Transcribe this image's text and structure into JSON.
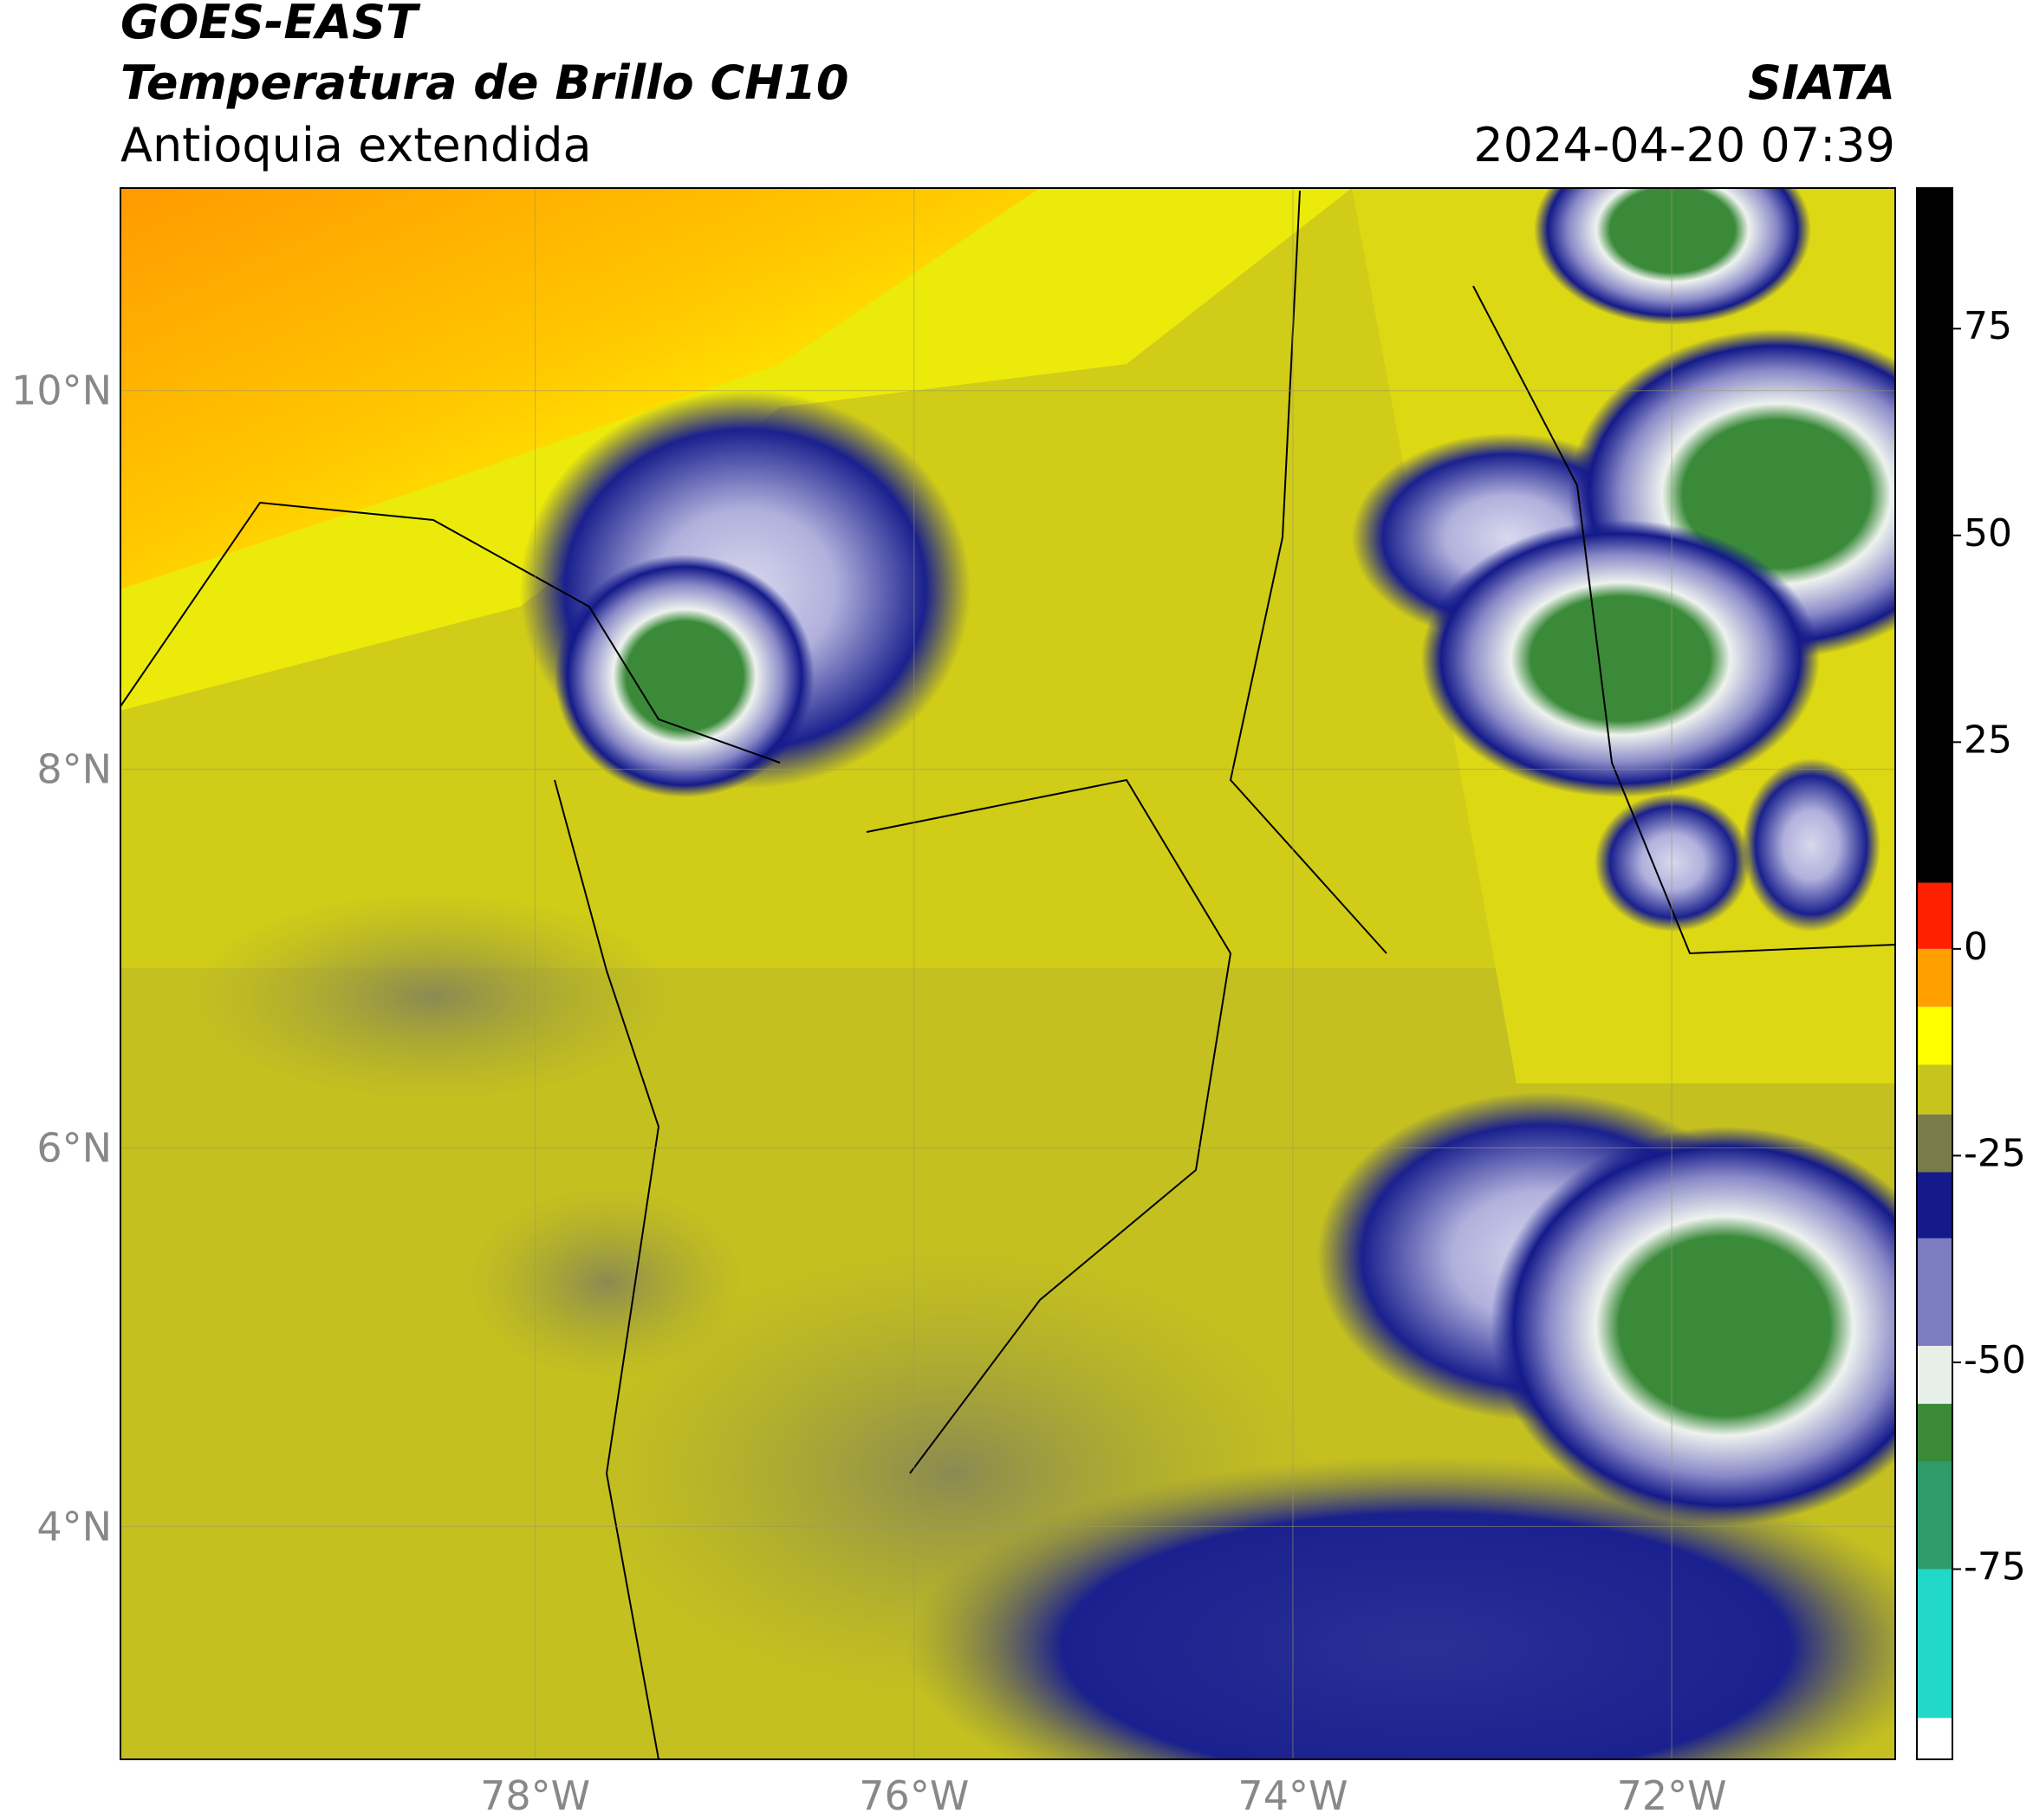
{
  "header": {
    "title": "GOES-EAST",
    "subtitle": "Temperatura de Brillo CH10",
    "region": "Antioquia extendida",
    "source": "SIATA",
    "datetime": "2024-04-20 07:39"
  },
  "map": {
    "xlim": [
      -80.19,
      -70.82
    ],
    "ylim": [
      2.77,
      11.07
    ],
    "xticks": [
      {
        "value": -78,
        "label": "78°W"
      },
      {
        "value": -76,
        "label": "76°W"
      },
      {
        "value": -74,
        "label": "74°W"
      },
      {
        "value": -72,
        "label": "72°W"
      }
    ],
    "yticks": [
      {
        "value": 4,
        "label": "4°N"
      },
      {
        "value": 6,
        "label": "6°N"
      },
      {
        "value": 8,
        "label": "8°N"
      },
      {
        "value": 10,
        "label": "10°N"
      }
    ],
    "grid": true
  },
  "colorbar": {
    "lim": [
      -98,
      92
    ],
    "ticks": [
      -75,
      -50,
      -25,
      0,
      25,
      50,
      75
    ],
    "colors": [
      {
        "from": -98,
        "to": -93,
        "color": "#ffffff"
      },
      {
        "from": -93,
        "to": -75,
        "color": "#22d8c8"
      },
      {
        "from": -75,
        "to": -62,
        "color": "#2f9a6a"
      },
      {
        "from": -62,
        "to": -55,
        "color": "#3a8a3a"
      },
      {
        "from": -55,
        "to": -48,
        "color": "#e8efe8"
      },
      {
        "from": -48,
        "to": -35,
        "color": "#7c7cc0"
      },
      {
        "from": -35,
        "to": -27,
        "color": "#141a8a"
      },
      {
        "from": -27,
        "to": -20,
        "color": "#7b7b4a"
      },
      {
        "from": -20,
        "to": -14,
        "color": "#c8c41e"
      },
      {
        "from": -14,
        "to": -7,
        "color": "#ffff00"
      },
      {
        "from": -7,
        "to": 0,
        "color": "#ffa000"
      },
      {
        "from": 0,
        "to": 8,
        "color": "#ff2000"
      },
      {
        "from": 8,
        "to": 92,
        "color": "#000000"
      }
    ]
  }
}
